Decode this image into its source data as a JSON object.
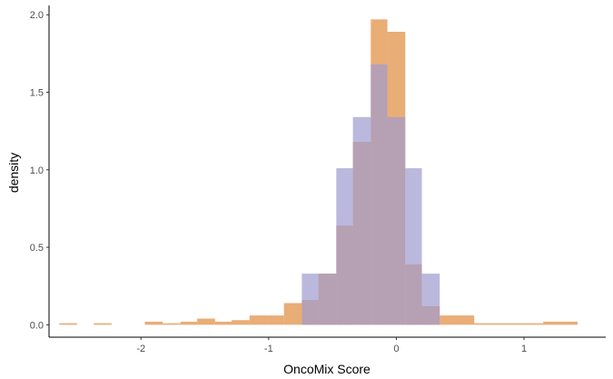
{
  "chart_data": {
    "type": "histogram",
    "xlabel": "OncoMix Score",
    "ylabel": "density",
    "xlim": [
      -2.72,
      1.64
    ],
    "ylim": [
      -0.08,
      2.06
    ],
    "x_ticks": [
      -2,
      -1,
      0,
      1
    ],
    "y_ticks": [
      0.0,
      0.5,
      1.0,
      1.5,
      2.0
    ],
    "y_tick_labels": [
      "0.0",
      "0.5",
      "1.0",
      "1.5",
      "2.0"
    ],
    "bin_width": 0.1352,
    "grid": false,
    "legend": "none",
    "series": [
      {
        "color": "#E08A3C",
        "opacity": 0.7,
        "bins": [
          {
            "x0": -2.64,
            "x1": -2.5,
            "y": 0.01
          },
          {
            "x0": -2.37,
            "x1": -2.23,
            "y": 0.01
          },
          {
            "x0": -1.97,
            "x1": -1.83,
            "y": 0.02
          },
          {
            "x0": -1.83,
            "x1": -1.69,
            "y": 0.01
          },
          {
            "x0": -1.69,
            "x1": -1.56,
            "y": 0.02
          },
          {
            "x0": -1.56,
            "x1": -1.42,
            "y": 0.04
          },
          {
            "x0": -1.42,
            "x1": -1.29,
            "y": 0.02
          },
          {
            "x0": -1.29,
            "x1": -1.15,
            "y": 0.03
          },
          {
            "x0": -1.15,
            "x1": -1.01,
            "y": 0.06
          },
          {
            "x0": -1.01,
            "x1": -0.88,
            "y": 0.06
          },
          {
            "x0": -0.88,
            "x1": -0.74,
            "y": 0.14
          },
          {
            "x0": -0.74,
            "x1": -0.61,
            "y": 0.16
          },
          {
            "x0": -0.61,
            "x1": -0.47,
            "y": 0.33
          },
          {
            "x0": -0.47,
            "x1": -0.34,
            "y": 0.64
          },
          {
            "x0": -0.34,
            "x1": -0.2,
            "y": 1.18
          },
          {
            "x0": -0.2,
            "x1": -0.07,
            "y": 1.97
          },
          {
            "x0": -0.07,
            "x1": 0.07,
            "y": 1.89
          },
          {
            "x0": 0.07,
            "x1": 0.2,
            "y": 0.39
          },
          {
            "x0": 0.2,
            "x1": 0.34,
            "y": 0.12
          },
          {
            "x0": 0.34,
            "x1": 0.61,
            "y": 0.06
          },
          {
            "x0": 0.61,
            "x1": 1.15,
            "y": 0.01
          },
          {
            "x0": 1.15,
            "x1": 1.42,
            "y": 0.02
          }
        ]
      },
      {
        "color": "#9E9ACF",
        "opacity": 0.7,
        "bins": [
          {
            "x0": -0.74,
            "x1": -0.61,
            "y": 0.33
          },
          {
            "x0": -0.61,
            "x1": -0.47,
            "y": 0.33
          },
          {
            "x0": -0.47,
            "x1": -0.34,
            "y": 1.01
          },
          {
            "x0": -0.34,
            "x1": -0.2,
            "y": 1.34
          },
          {
            "x0": -0.2,
            "x1": -0.07,
            "y": 1.68
          },
          {
            "x0": -0.07,
            "x1": 0.07,
            "y": 1.34
          },
          {
            "x0": 0.07,
            "x1": 0.2,
            "y": 1.01
          },
          {
            "x0": 0.2,
            "x1": 0.34,
            "y": 0.33
          }
        ]
      }
    ]
  }
}
